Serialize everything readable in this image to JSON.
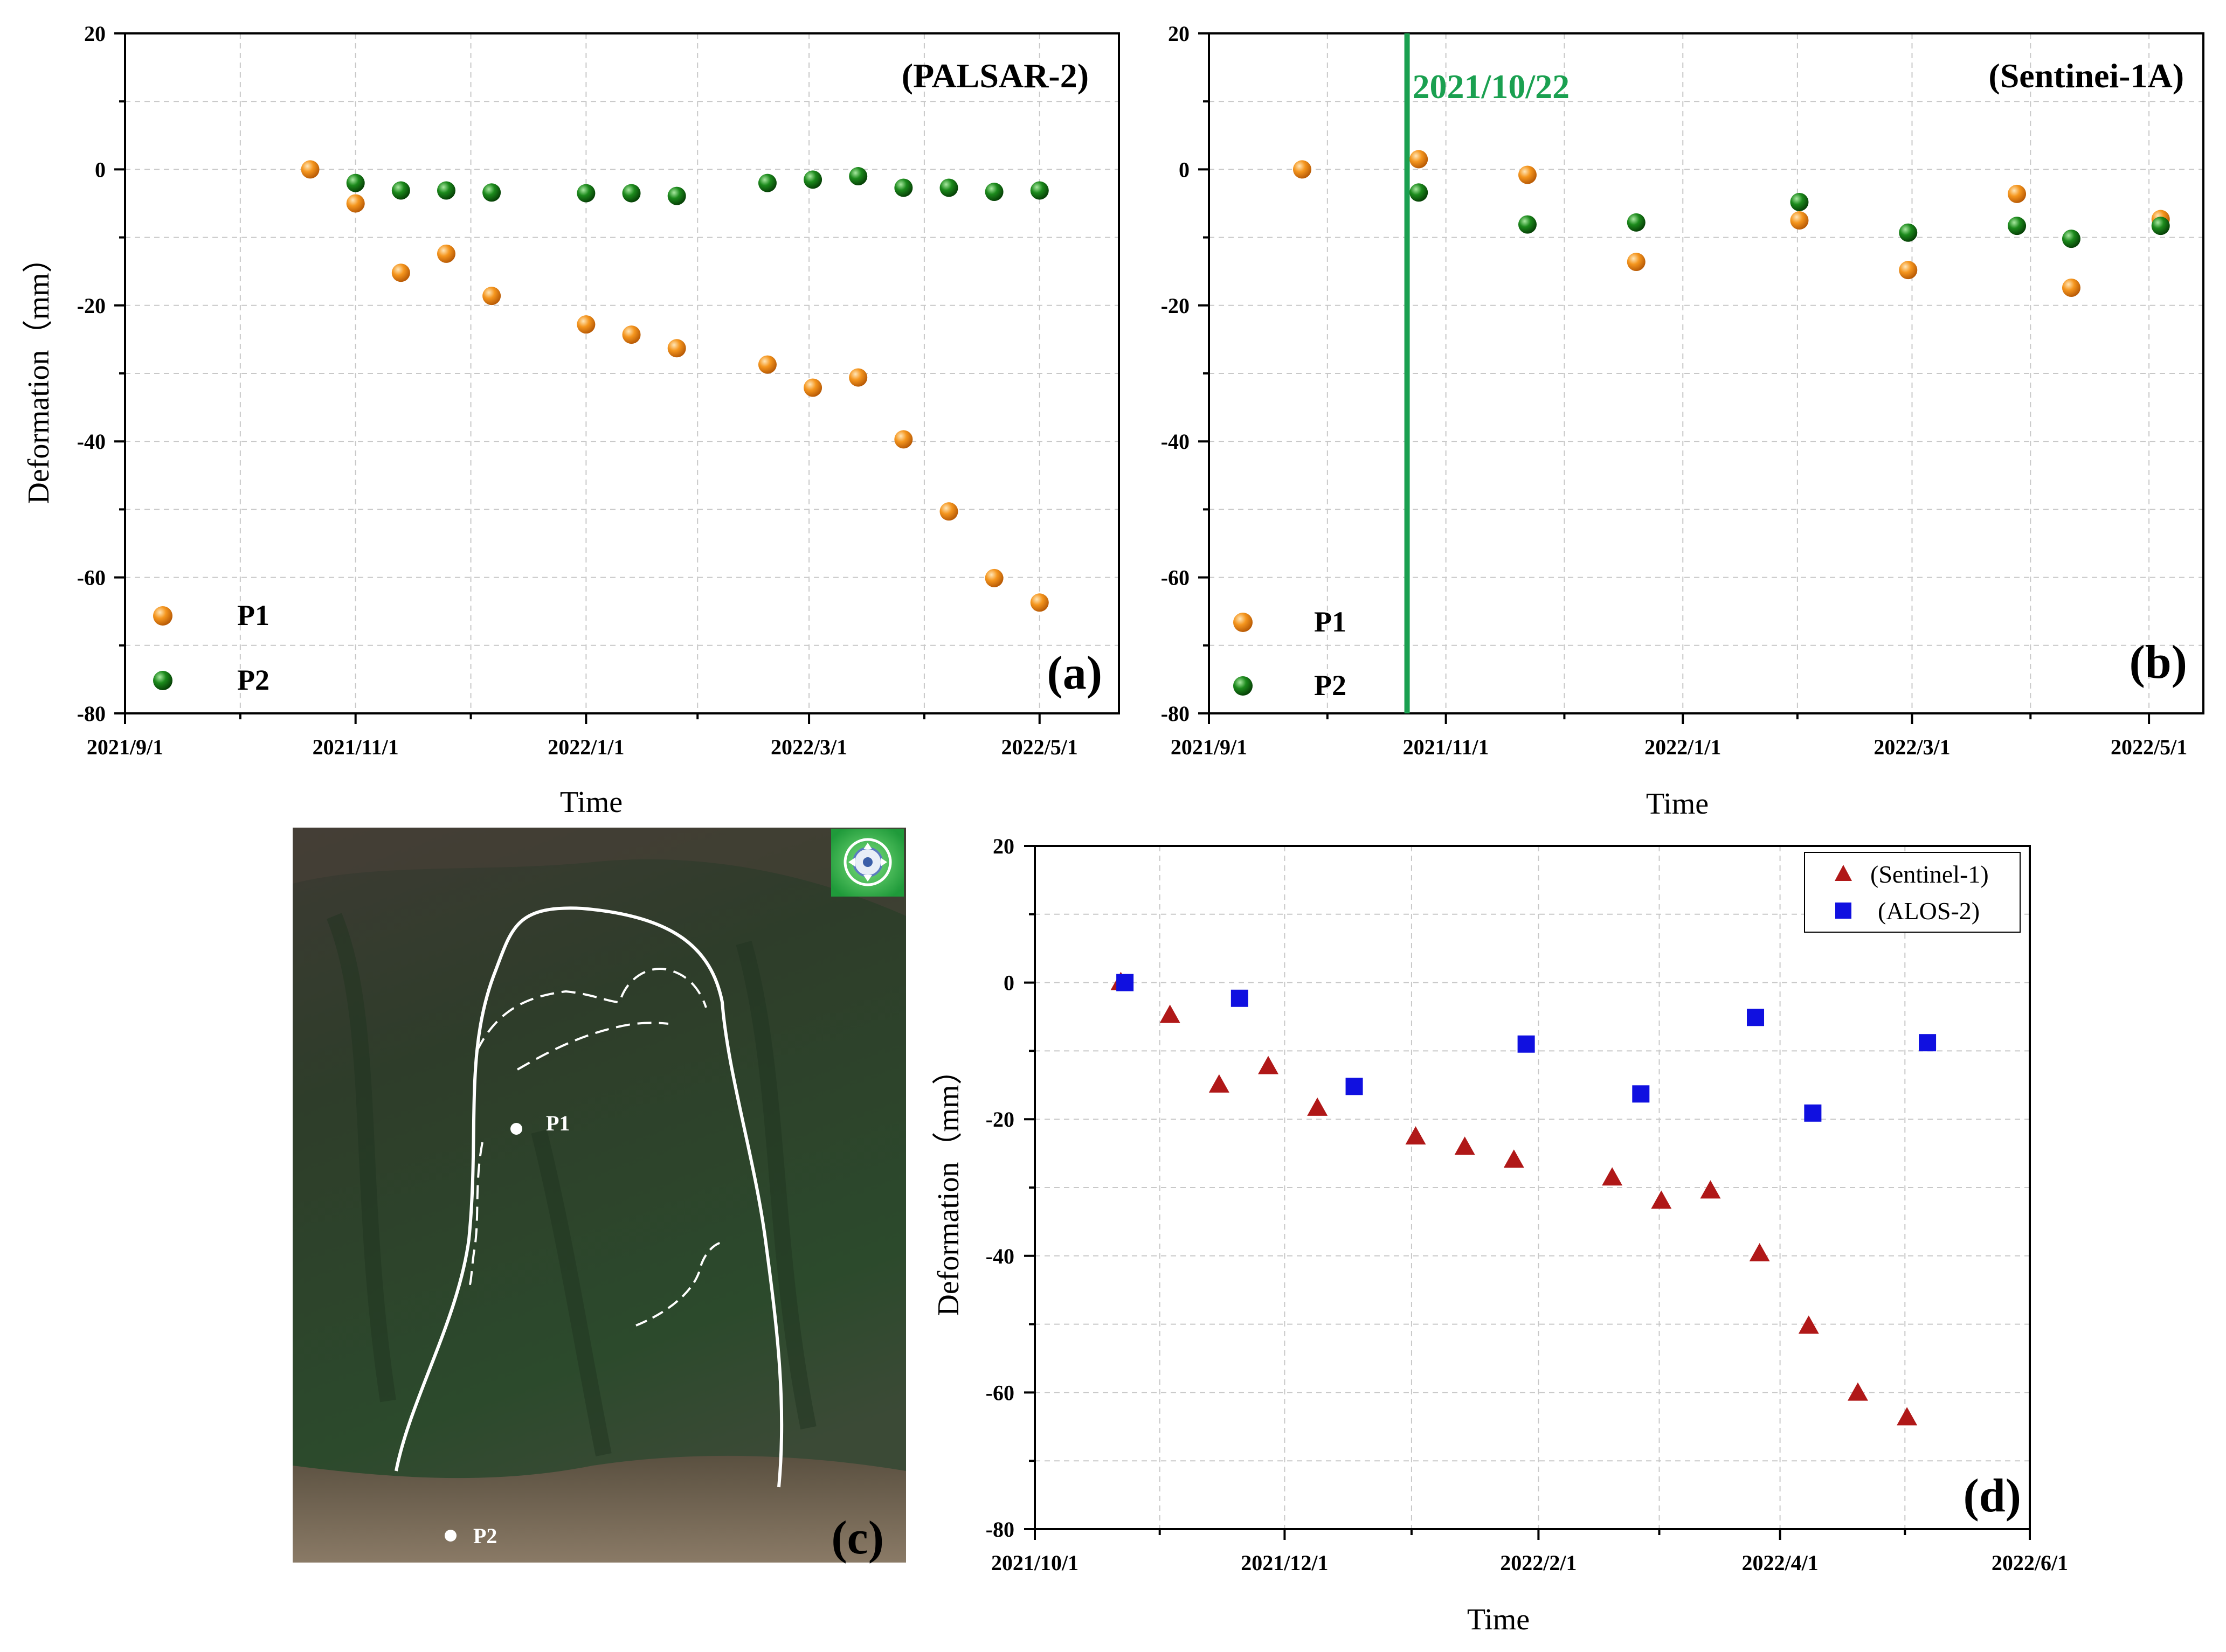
{
  "colors": {
    "p1": "#f08a1e",
    "p2": "#157a15",
    "sentinel1": "#b01818",
    "alos2": "#1010e0",
    "event_line": "#1aa050",
    "grid": "#c8c8c8"
  },
  "chart_data": [
    {
      "panel": "a",
      "type": "scatter",
      "title": "(PALSAR-2)",
      "panel_label": "(a)",
      "xlabel": "Time",
      "ylabel": "Deformation（mm）",
      "ylim": [
        -80,
        20
      ],
      "yticks": [
        "20",
        "0",
        "-20",
        "-40",
        "-60",
        "-80"
      ],
      "xlim": [
        "2021-09-01",
        "2022-05-22"
      ],
      "xticks": [
        "2021/9/1",
        "2021/11/1",
        "2022/1/1",
        "2022/3/1",
        "2022/5/1"
      ],
      "legend_position": "bottom-left",
      "series": [
        {
          "name": "P1",
          "marker": "sphere",
          "color": "#f08a1e",
          "dates": [
            "2021-10-20",
            "2021-11-01",
            "2021-11-13",
            "2021-11-25",
            "2021-12-07",
            "2022-01-01",
            "2022-01-13",
            "2022-01-25",
            "2022-02-18",
            "2022-03-02",
            "2022-03-14",
            "2022-03-26",
            "2022-04-07",
            "2022-04-19",
            "2022-05-01"
          ],
          "values": [
            0,
            -5,
            -15.2,
            -12.4,
            -18.6,
            -22.8,
            -24.3,
            -26.3,
            -28.7,
            -32.1,
            -30.6,
            -39.7,
            -50.3,
            -60.1,
            -63.7
          ]
        },
        {
          "name": "P2",
          "marker": "sphere",
          "color": "#157a15",
          "dates": [
            "2021-11-01",
            "2021-11-13",
            "2021-11-25",
            "2021-12-07",
            "2022-01-01",
            "2022-01-13",
            "2022-01-25",
            "2022-02-18",
            "2022-03-02",
            "2022-03-14",
            "2022-03-26",
            "2022-04-07",
            "2022-04-19",
            "2022-05-01"
          ],
          "values": [
            -2,
            -3.1,
            -3.1,
            -3.4,
            -3.5,
            -3.5,
            -3.9,
            -2,
            -1.5,
            -1,
            -2.7,
            -2.7,
            -3.3,
            -3.1
          ]
        }
      ]
    },
    {
      "panel": "b",
      "type": "scatter",
      "title": "(Sentinei-1A)",
      "panel_label": "(b)",
      "xlabel": "Time",
      "ylabel": "",
      "ylim": [
        -80,
        20
      ],
      "yticks": [
        "20",
        "0",
        "-20",
        "-40",
        "-60",
        "-80"
      ],
      "xlim": [
        "2021-09-01",
        "2022-05-15"
      ],
      "xticks": [
        "2021/9/1",
        "2021/11/1",
        "2022/1/1",
        "2022/3/1",
        "2022/5/1"
      ],
      "legend_position": "bottom-left",
      "annotation": {
        "label": "2021/10/22",
        "date": "2021-10-22"
      },
      "series": [
        {
          "name": "P1",
          "marker": "sphere",
          "color": "#f08a1e",
          "dates": [
            "2021-09-25",
            "2021-10-25",
            "2021-11-22",
            "2021-12-20",
            "2022-01-31",
            "2022-02-28",
            "2022-03-28",
            "2022-04-11",
            "2022-05-04"
          ],
          "values": [
            0,
            1.5,
            -0.8,
            -13.6,
            -7.5,
            -14.8,
            -3.6,
            -17.4,
            -7.3
          ]
        },
        {
          "name": "P2",
          "marker": "sphere",
          "color": "#157a15",
          "dates": [
            "2021-10-25",
            "2021-11-22",
            "2021-12-20",
            "2022-01-31",
            "2022-02-28",
            "2022-03-28",
            "2022-04-11",
            "2022-05-04"
          ],
          "values": [
            -3.4,
            -8.1,
            -7.8,
            -4.8,
            -9.3,
            -8.3,
            -10.2,
            -8.3
          ]
        }
      ]
    },
    {
      "panel": "d",
      "type": "scatter",
      "title": "",
      "panel_label": "(d)",
      "xlabel": "Time",
      "ylabel": "Deformation（mm）",
      "ylim": [
        -80,
        20
      ],
      "yticks": [
        "20",
        "0",
        "-20",
        "-40",
        "-60",
        "-80"
      ],
      "xlim": [
        "2021-10-01",
        "2022-06-01"
      ],
      "xticks": [
        "2021/10/1",
        "2021/12/1",
        "2022/2/1",
        "2022/4/1",
        "2022/6/1"
      ],
      "legend_position": "top-right",
      "series": [
        {
          "name": "(Sentinel-1)",
          "marker": "triangle",
          "color": "#b01818",
          "dates": [
            "2021-10-22",
            "2021-11-03",
            "2021-11-15",
            "2021-11-27",
            "2021-12-09",
            "2022-01-02",
            "2022-01-14",
            "2022-01-26",
            "2022-02-19",
            "2022-03-03",
            "2022-03-15",
            "2022-03-27",
            "2022-04-08",
            "2022-04-20",
            "2022-05-02"
          ],
          "values": [
            0,
            -4.8,
            -15,
            -12.3,
            -18.4,
            -22.6,
            -24.1,
            -26,
            -28.6,
            -32,
            -30.5,
            -39.7,
            -50.3,
            -60.1,
            -63.7
          ]
        },
        {
          "name": "(ALOS-2)",
          "marker": "square",
          "color": "#1010e0",
          "dates": [
            "2021-10-23",
            "2021-11-20",
            "2021-12-18",
            "2022-01-29",
            "2022-02-26",
            "2022-03-26",
            "2022-04-09",
            "2022-05-07"
          ],
          "values": [
            0,
            -2.3,
            -15.2,
            -9,
            -16.3,
            -5.1,
            -19.1,
            -8.8
          ]
        }
      ]
    }
  ],
  "photo": {
    "panel_label": "(c)",
    "point_labels": [
      "P1",
      "P2"
    ]
  }
}
